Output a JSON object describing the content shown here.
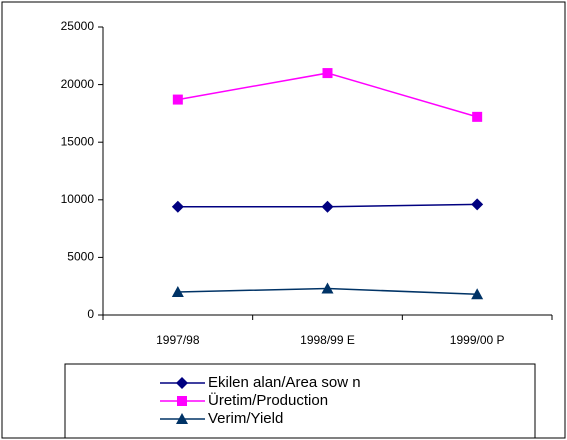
{
  "chart_data": {
    "type": "line",
    "categories": [
      "1997/98",
      "1998/99 E",
      "1999/00 P"
    ],
    "series": [
      {
        "name": "Ekilen alan/Area sow n",
        "color": "#000080",
        "marker": "diamond",
        "values": [
          9400,
          9400,
          9600
        ]
      },
      {
        "name": "Üretim/Production",
        "color": "#ff00ff",
        "marker": "square",
        "values": [
          18700,
          21000,
          17200
        ]
      },
      {
        "name": "Verim/Yield",
        "color": "#003366",
        "marker": "triangle",
        "values": [
          2000,
          2300,
          1800
        ]
      }
    ],
    "ylim": [
      0,
      25000
    ],
    "yticks": [
      0,
      5000,
      10000,
      15000,
      20000,
      25000
    ],
    "grid": false,
    "legend": "bottom"
  }
}
